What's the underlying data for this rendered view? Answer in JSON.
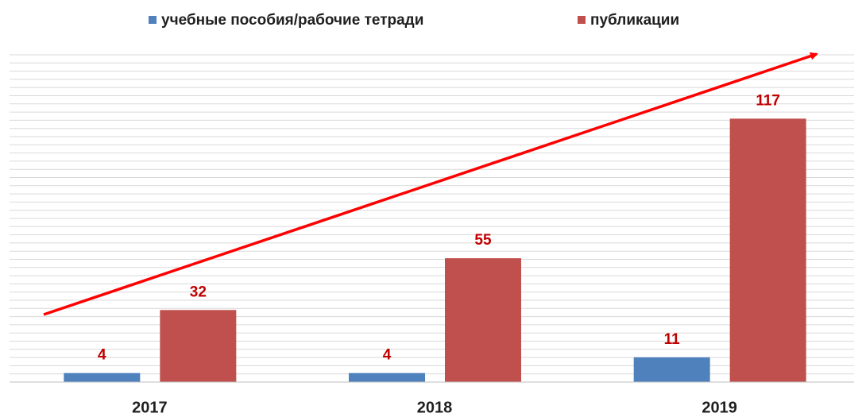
{
  "chart_data": {
    "type": "bar",
    "categories": [
      "2017",
      "2018",
      "2019"
    ],
    "series": [
      {
        "name": "учебные пособия/рабочие тетради",
        "color": "#4f81bd",
        "values": [
          4,
          4,
          11
        ]
      },
      {
        "name": "публикации",
        "color": "#c0504d",
        "values": [
          32,
          55,
          117
        ]
      }
    ],
    "ylim": [
      0,
      145
    ],
    "grid": true
  }
}
